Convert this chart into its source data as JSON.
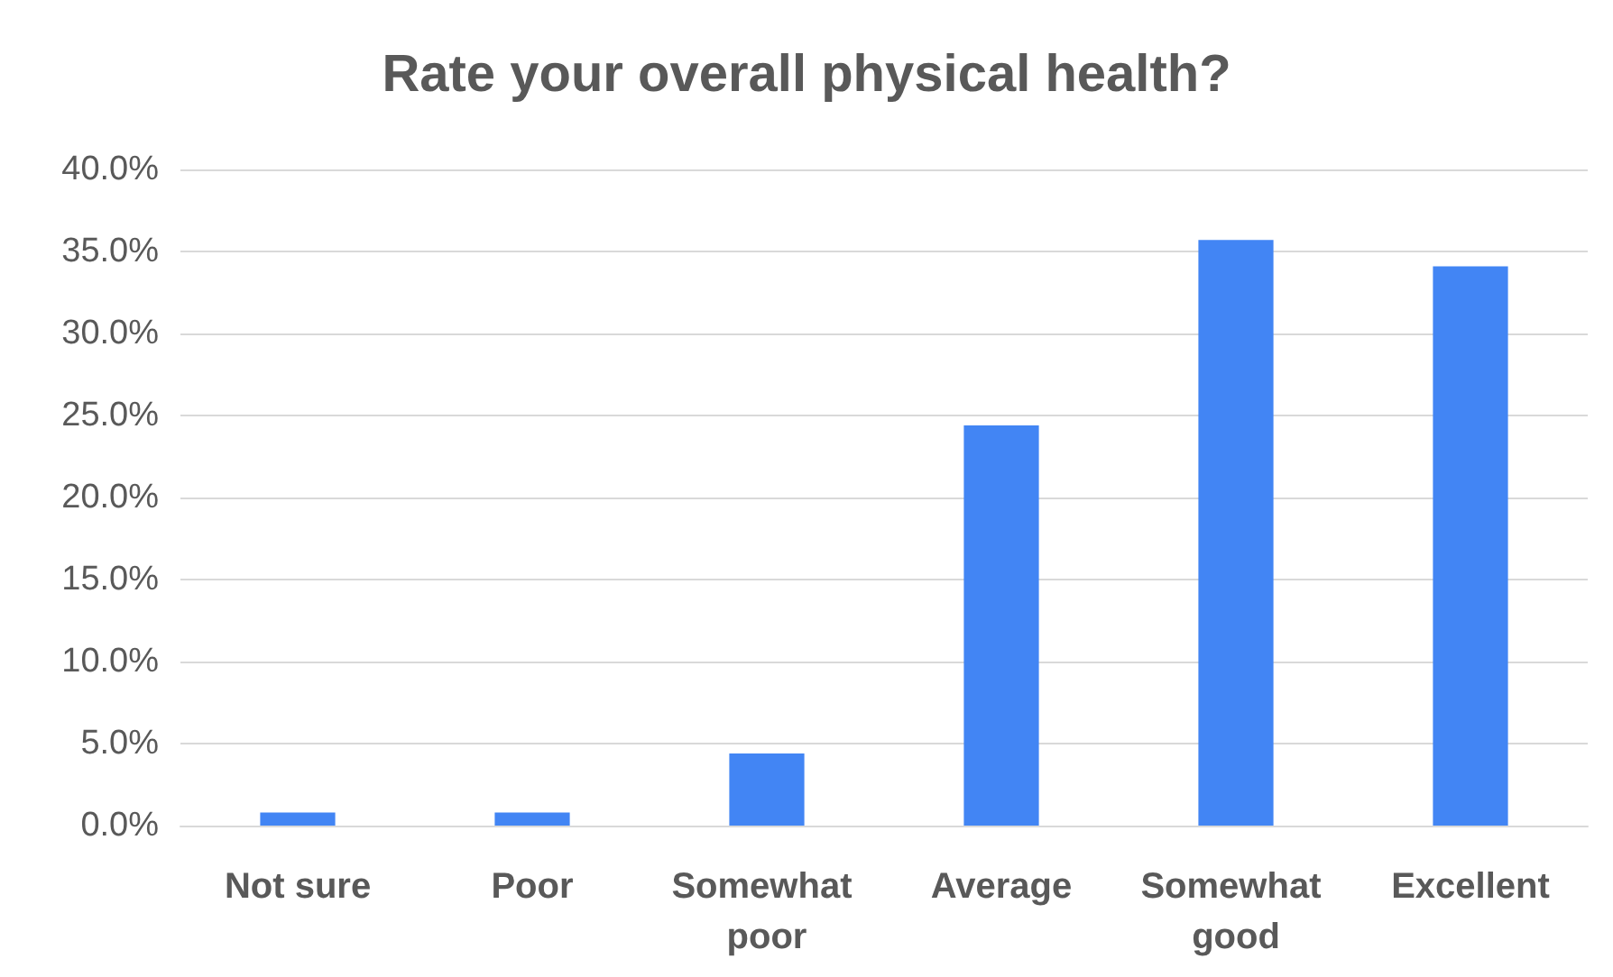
{
  "chart_data": {
    "type": "bar",
    "title": "Rate your overall physical health?",
    "categories": [
      "Not sure",
      "Poor",
      "Somewhat poor",
      "Average",
      "Somewhat good",
      "Excellent"
    ],
    "values": [
      0.8,
      0.8,
      4.4,
      24.4,
      35.7,
      34.1
    ],
    "color": "#4285f4",
    "ylim": [
      0,
      40
    ],
    "yticks": [
      {
        "value": 0,
        "label": "0.0%"
      },
      {
        "value": 5,
        "label": "5.0%"
      },
      {
        "value": 10,
        "label": "10.0%"
      },
      {
        "value": 15,
        "label": "15.0%"
      },
      {
        "value": 20,
        "label": "20.0%"
      },
      {
        "value": 25,
        "label": "25.0%"
      },
      {
        "value": 30,
        "label": "30.0%"
      },
      {
        "value": 35,
        "label": "35.0%"
      },
      {
        "value": 40,
        "label": "40.0%"
      }
    ],
    "grid": true
  }
}
